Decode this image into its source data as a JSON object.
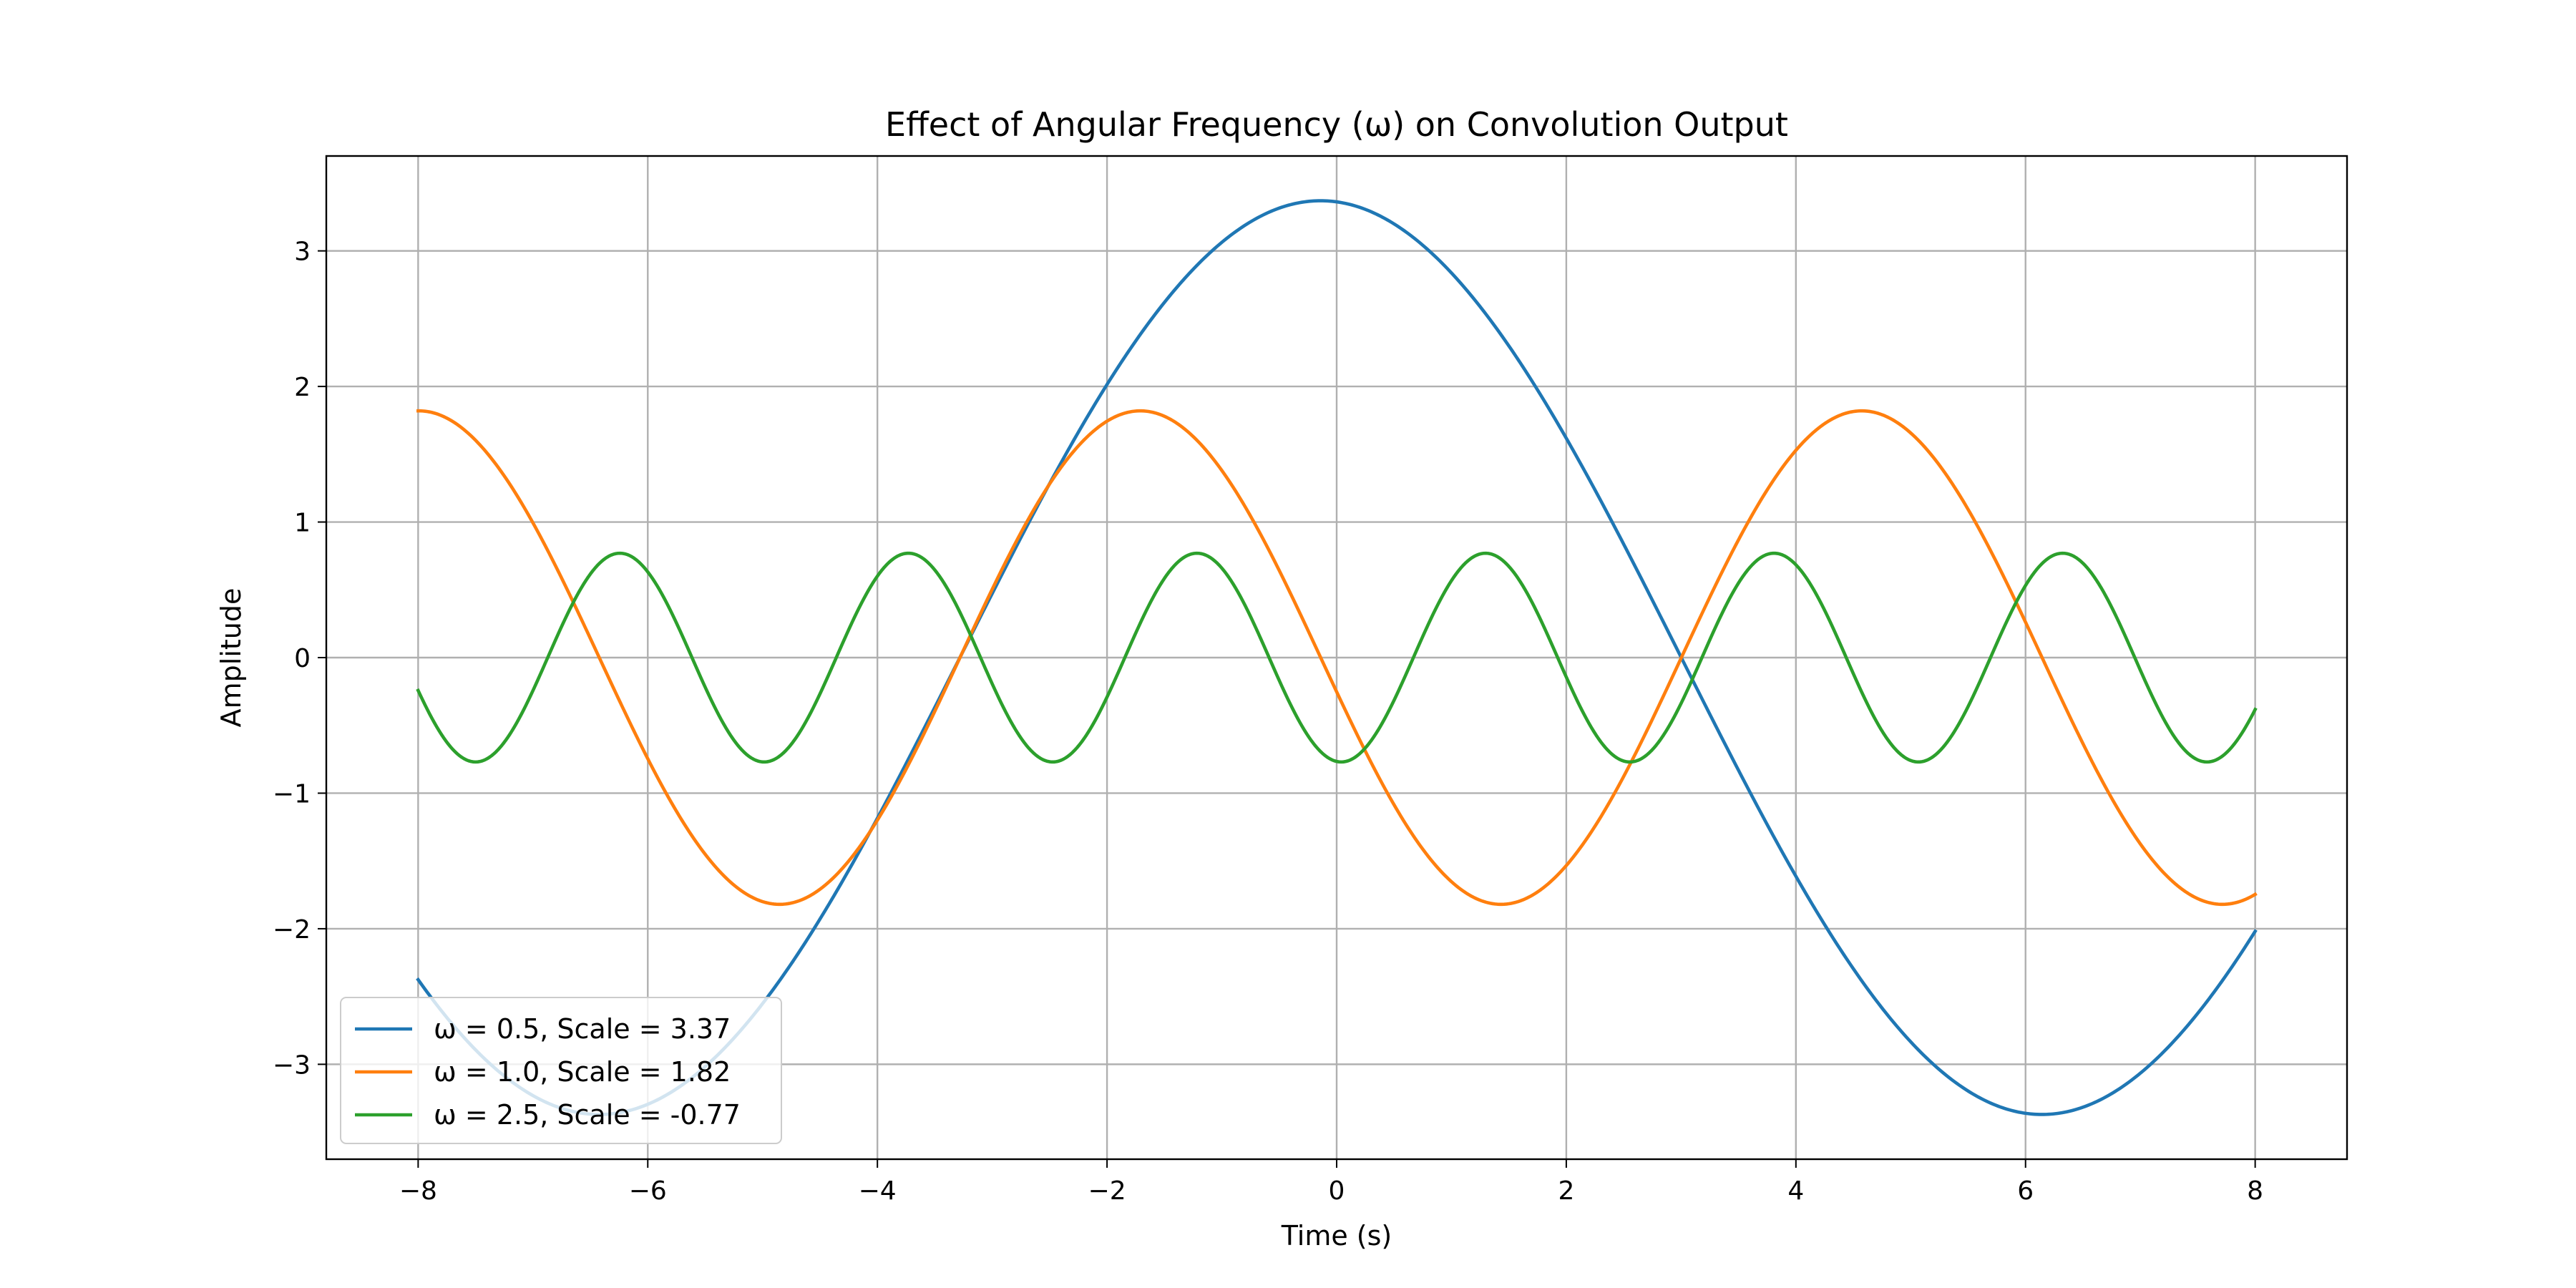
{
  "chart_data": {
    "type": "line",
    "title": "Effect of Angular Frequency (ω) on Convolution Output",
    "xlabel": "Time (s)",
    "ylabel": "Amplitude",
    "xlim": [
      -8.8,
      8.8
    ],
    "ylim": [
      -3.7,
      3.7
    ],
    "x_range": [
      -8,
      8
    ],
    "xticks": [
      -8,
      -6,
      -4,
      -2,
      0,
      2,
      4,
      6,
      8
    ],
    "xtick_labels": [
      "−8",
      "−6",
      "−4",
      "−2",
      "0",
      "2",
      "4",
      "6",
      "8"
    ],
    "yticks": [
      -3,
      -2,
      -1,
      0,
      1,
      2,
      3
    ],
    "ytick_labels": [
      "−3",
      "−2",
      "−1",
      "0",
      "1",
      "2",
      "3"
    ],
    "grid": true,
    "legend_position": "lower-left",
    "series": [
      {
        "name": "ω = 0.5, Scale = 3.37",
        "omega": 0.5,
        "scale": 3.37,
        "phase": 0.07,
        "color": "#1f77b4"
      },
      {
        "name": "ω = 1.0, Scale = 1.82",
        "omega": 1.0,
        "scale": 1.82,
        "phase": 1.71,
        "color": "#ff7f0e"
      },
      {
        "name": "ω = 2.5, Scale = -0.77",
        "omega": 2.5,
        "scale": -0.77,
        "phase": -0.1,
        "color": "#2ca02c"
      }
    ]
  }
}
